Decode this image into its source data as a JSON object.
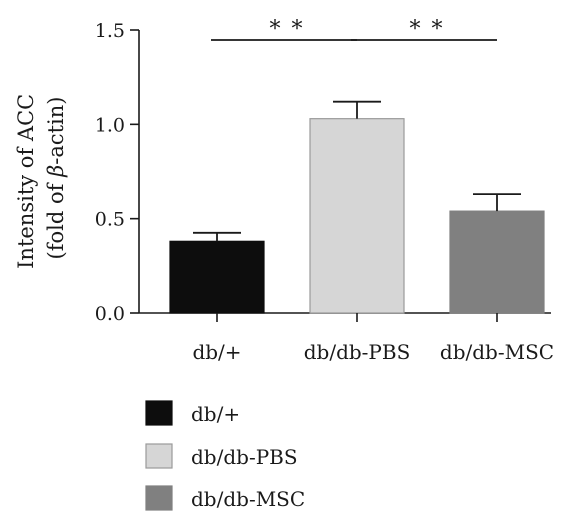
{
  "chart_data": {
    "type": "bar",
    "title": "",
    "ylabel_line1": "Intensity of ACC",
    "ylabel_line2_prefix": "(fold of ",
    "ylabel_line2_symbol": "β",
    "ylabel_line2_suffix": "-actin)",
    "ylim": [
      0.0,
      1.5
    ],
    "yticks": [
      "0.0",
      "0.5",
      "1.0",
      "1.5"
    ],
    "ytick_values": [
      0.0,
      0.5,
      1.0,
      1.5
    ],
    "categories": [
      "db/+",
      "db/db-PBS",
      "db/db-MSC"
    ],
    "values": [
      0.38,
      1.03,
      0.54
    ],
    "errors": [
      0.045,
      0.09,
      0.09
    ],
    "colors": [
      "#0d0d0d",
      "#d6d6d6",
      "#808080"
    ],
    "significance": [
      {
        "from": 0,
        "to": 1,
        "label": "* *"
      },
      {
        "from": 1,
        "to": 2,
        "label": "* *"
      }
    ],
    "legend": [
      {
        "label": "db/+",
        "color": "#0d0d0d"
      },
      {
        "label": "db/db-PBS",
        "color": "#d6d6d6"
      },
      {
        "label": "db/db-MSC",
        "color": "#808080"
      }
    ],
    "legend_position": "bottom-left",
    "grid": false
  }
}
